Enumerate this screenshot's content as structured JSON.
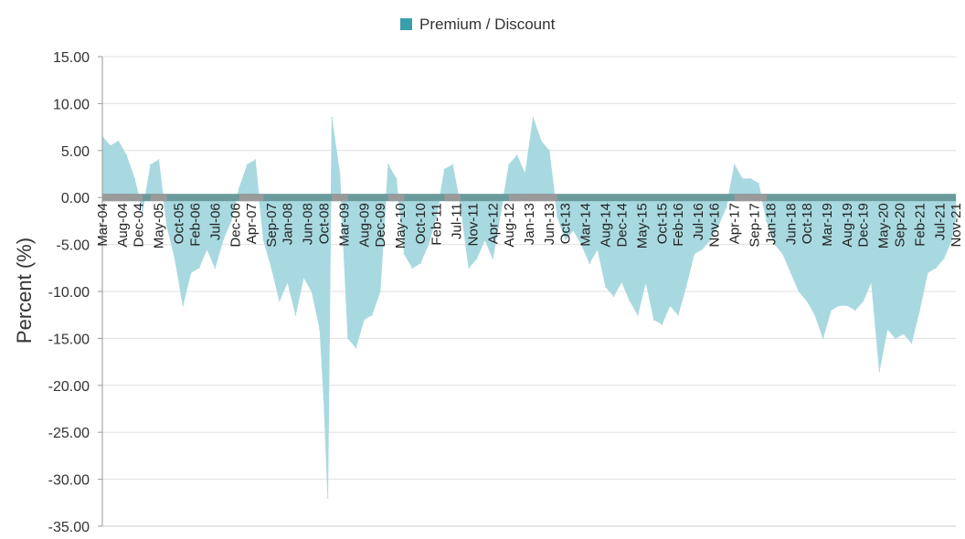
{
  "chart_data": {
    "type": "area",
    "title": "",
    "ylabel": "Percent (%)",
    "xlabel": "",
    "ylim": [
      -35,
      15
    ],
    "yticks": [
      15,
      10,
      5,
      0,
      -5,
      -10,
      -15,
      -20,
      -25,
      -30,
      -35
    ],
    "ytick_labels": [
      "15.00",
      "10.00",
      "5.00",
      "0.00",
      "-5.00",
      "-10.00",
      "-15.00",
      "-20.00",
      "-25.00",
      "-30.00",
      "-35.00"
    ],
    "x_start": "Mar-04",
    "x_end": "Nov-21",
    "xtick_labels": [
      "Mar-04",
      "Aug-04",
      "Dec-04",
      "May-05",
      "Oct-05",
      "Feb-06",
      "Jul-06",
      "Dec-06",
      "Apr-07",
      "Sep-07",
      "Jan-08",
      "Jun-08",
      "Oct-08",
      "Mar-09",
      "Aug-09",
      "Dec-09",
      "May-10",
      "Oct-10",
      "Feb-11",
      "Jul-11",
      "Nov-11",
      "Apr-12",
      "Aug-12",
      "Jan-13",
      "Jun-13",
      "Oct-13",
      "Mar-14",
      "Aug-14",
      "Dec-14",
      "May-15",
      "Oct-15",
      "Feb-16",
      "Jul-16",
      "Nov-16",
      "Apr-17",
      "Sep-17",
      "Jan-18",
      "Jun-18",
      "Oct-18",
      "Mar-19",
      "Aug-19",
      "Dec-19",
      "May-20",
      "Sep-20",
      "Feb-21",
      "Jul-21",
      "Nov-21"
    ],
    "legend": {
      "position": "top-center",
      "entries": [
        "Premium / Discount"
      ]
    },
    "grid": true,
    "colors": {
      "legend_swatch": "#3a9fad",
      "area_fill": "#a8d9e0",
      "zero_band": "#6a9a9c",
      "zero_band_alt": "#9a9a9a",
      "grid": "#e0e0e0"
    },
    "series": [
      {
        "name": "Premium / Discount",
        "x": [
          "Mar-04",
          "May-04",
          "Jul-04",
          "Sep-04",
          "Nov-04",
          "Jan-05",
          "Mar-05",
          "May-05",
          "Jul-05",
          "Sep-05",
          "Nov-05",
          "Jan-06",
          "Mar-06",
          "May-06",
          "Jul-06",
          "Sep-06",
          "Nov-06",
          "Jan-07",
          "Mar-07",
          "May-07",
          "Jul-07",
          "Sep-07",
          "Nov-07",
          "Jan-08",
          "Mar-08",
          "May-08",
          "Jul-08",
          "Sep-08",
          "Oct-08",
          "Nov-08",
          "Dec-08",
          "Feb-09",
          "Apr-09",
          "Jun-09",
          "Aug-09",
          "Oct-09",
          "Dec-09",
          "Feb-10",
          "Apr-10",
          "Jun-10",
          "Aug-10",
          "Oct-10",
          "Dec-10",
          "Feb-11",
          "Apr-11",
          "Jun-11",
          "Aug-11",
          "Oct-11",
          "Dec-11",
          "Feb-12",
          "Apr-12",
          "Jun-12",
          "Aug-12",
          "Oct-12",
          "Dec-12",
          "Feb-13",
          "Apr-13",
          "Jun-13",
          "Aug-13",
          "Oct-13",
          "Dec-13",
          "Feb-14",
          "Apr-14",
          "Jun-14",
          "Aug-14",
          "Oct-14",
          "Dec-14",
          "Feb-15",
          "Apr-15",
          "Jun-15",
          "Aug-15",
          "Oct-15",
          "Dec-15",
          "Feb-16",
          "Apr-16",
          "Jun-16",
          "Aug-16",
          "Oct-16",
          "Dec-16",
          "Feb-17",
          "Apr-17",
          "Jun-17",
          "Aug-17",
          "Oct-17",
          "Dec-17",
          "Feb-18",
          "Apr-18",
          "Jun-18",
          "Aug-18",
          "Oct-18",
          "Dec-18",
          "Feb-19",
          "Apr-19",
          "Jun-19",
          "Aug-19",
          "Oct-19",
          "Dec-19",
          "Feb-20",
          "Apr-20",
          "Jun-20",
          "Aug-20",
          "Oct-20",
          "Dec-20",
          "Feb-21",
          "Apr-21",
          "Jun-21",
          "Aug-21",
          "Oct-21",
          "Nov-21"
        ],
        "values": [
          6.5,
          5.5,
          6.0,
          4.5,
          2.0,
          -1.5,
          3.5,
          4.0,
          -3.0,
          -6.5,
          -11.5,
          -8.0,
          -7.5,
          -5.5,
          -7.5,
          -4.5,
          -2.5,
          1.0,
          3.5,
          4.0,
          -4.5,
          -7.5,
          -11.0,
          -9.0,
          -12.5,
          -8.5,
          -10.0,
          -14.0,
          -21.5,
          -32.0,
          8.5,
          2.5,
          -15.0,
          -16.0,
          -13.0,
          -12.5,
          -10.0,
          3.5,
          2.0,
          -6.0,
          -7.5,
          -7.0,
          -5.0,
          -2.0,
          3.0,
          3.5,
          -1.0,
          -7.5,
          -6.5,
          -4.5,
          -6.5,
          -1.5,
          3.5,
          4.5,
          2.5,
          8.5,
          6.0,
          5.0,
          -2.0,
          -4.5,
          -3.5,
          -5.0,
          -7.0,
          -5.5,
          -9.5,
          -10.5,
          -9.0,
          -11.0,
          -12.5,
          -9.0,
          -13.0,
          -13.5,
          -11.5,
          -12.5,
          -9.5,
          -6.0,
          -5.5,
          -4.5,
          -3.0,
          -1.0,
          3.5,
          2.0,
          2.0,
          1.5,
          -2.5,
          -5.0,
          -6.0,
          -8.0,
          -10.0,
          -11.0,
          -12.5,
          -15.0,
          -12.0,
          -11.5,
          -11.5,
          -12.0,
          -11.0,
          -9.0,
          -18.5,
          -14.0,
          -15.0,
          -14.5,
          -15.5,
          -12.0,
          -8.0,
          -7.5,
          -6.5,
          -4.5,
          -2.0
        ]
      }
    ]
  }
}
